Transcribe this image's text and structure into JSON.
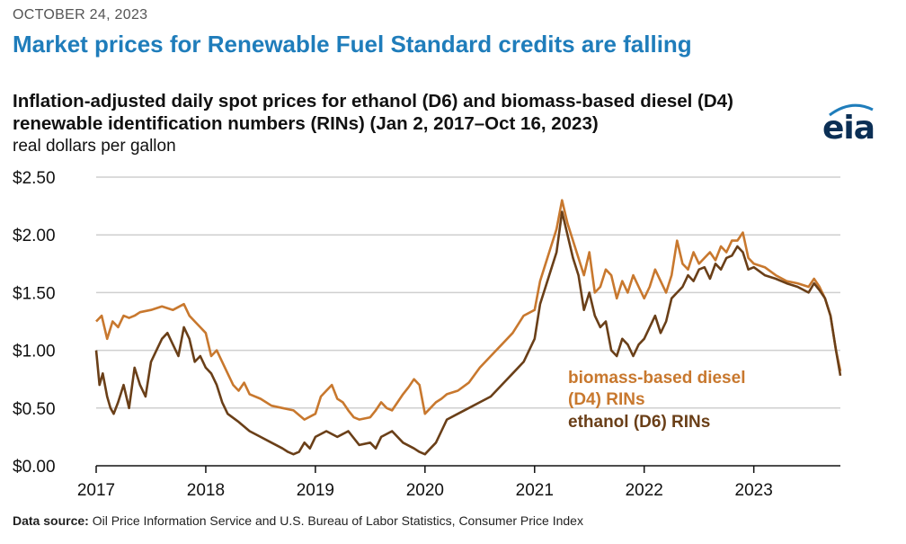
{
  "header": {
    "date": "OCTOBER 24, 2023",
    "headline": "Market prices for Renewable Fuel Standard credits are falling"
  },
  "logo": {
    "text": "eia"
  },
  "footer": {
    "source_label": "Data source:",
    "source_text": "Oil Price Information Service and U.S. Bureau of Labor Statistics, Consumer Price Index"
  },
  "chart_data": {
    "type": "line",
    "title": "Inflation-adjusted daily spot prices for ethanol (D6) and biomass-based diesel (D4) renewable identification numbers (RINs) (Jan 2, 2017–Oct 16, 2023)",
    "ylabel": "real dollars per gallon",
    "xlabel": "",
    "ylim": [
      0,
      2.5
    ],
    "xlim": [
      2017.0,
      2023.79
    ],
    "y_ticks": [
      0,
      0.5,
      1.0,
      1.5,
      2.0,
      2.5
    ],
    "y_tick_labels": [
      "$0.00",
      "$0.50",
      "$1.00",
      "$1.50",
      "$2.00",
      "$2.50"
    ],
    "x_ticks": [
      2017,
      2018,
      2019,
      2020,
      2021,
      2022,
      2023
    ],
    "x_tick_labels": [
      "2017",
      "2018",
      "2019",
      "2020",
      "2021",
      "2022",
      "2023"
    ],
    "grid": "horizontal",
    "series": [
      {
        "name": "biomass-based diesel (D4) RINs",
        "label_lines": [
          "biomass-based diesel",
          "(D4) RINs"
        ],
        "color": "#c8782e",
        "x": [
          2017.0,
          2017.05,
          2017.1,
          2017.15,
          2017.2,
          2017.25,
          2017.3,
          2017.35,
          2017.4,
          2017.5,
          2017.6,
          2017.7,
          2017.8,
          2017.85,
          2017.9,
          2017.95,
          2018.0,
          2018.05,
          2018.1,
          2018.15,
          2018.2,
          2018.25,
          2018.3,
          2018.35,
          2018.4,
          2018.5,
          2018.6,
          2018.7,
          2018.8,
          2018.9,
          2019.0,
          2019.05,
          2019.1,
          2019.15,
          2019.2,
          2019.25,
          2019.3,
          2019.35,
          2019.4,
          2019.5,
          2019.55,
          2019.6,
          2019.65,
          2019.7,
          2019.75,
          2019.8,
          2019.85,
          2019.9,
          2019.95,
          2020.0,
          2020.05,
          2020.1,
          2020.15,
          2020.2,
          2020.3,
          2020.4,
          2020.5,
          2020.6,
          2020.7,
          2020.8,
          2020.9,
          2021.0,
          2021.05,
          2021.1,
          2021.15,
          2021.2,
          2021.25,
          2021.3,
          2021.35,
          2021.4,
          2021.45,
          2021.5,
          2021.55,
          2021.6,
          2021.65,
          2021.7,
          2021.75,
          2021.8,
          2021.85,
          2021.9,
          2021.95,
          2022.0,
          2022.05,
          2022.1,
          2022.15,
          2022.2,
          2022.25,
          2022.3,
          2022.35,
          2022.4,
          2022.45,
          2022.5,
          2022.55,
          2022.6,
          2022.65,
          2022.7,
          2022.75,
          2022.8,
          2022.85,
          2022.9,
          2022.95,
          2023.0,
          2023.1,
          2023.2,
          2023.3,
          2023.4,
          2023.5,
          2023.55,
          2023.6,
          2023.65,
          2023.7,
          2023.75,
          2023.79
        ],
        "y": [
          1.25,
          1.3,
          1.1,
          1.25,
          1.2,
          1.3,
          1.28,
          1.3,
          1.33,
          1.35,
          1.38,
          1.35,
          1.4,
          1.3,
          1.25,
          1.2,
          1.15,
          0.95,
          1.0,
          0.9,
          0.8,
          0.7,
          0.65,
          0.72,
          0.62,
          0.58,
          0.52,
          0.5,
          0.48,
          0.4,
          0.45,
          0.6,
          0.65,
          0.7,
          0.58,
          0.55,
          0.48,
          0.42,
          0.4,
          0.42,
          0.48,
          0.55,
          0.5,
          0.48,
          0.55,
          0.62,
          0.68,
          0.75,
          0.7,
          0.45,
          0.5,
          0.55,
          0.58,
          0.62,
          0.65,
          0.72,
          0.85,
          0.95,
          1.05,
          1.15,
          1.3,
          1.35,
          1.6,
          1.75,
          1.9,
          2.05,
          2.3,
          2.1,
          1.95,
          1.8,
          1.65,
          1.85,
          1.5,
          1.55,
          1.7,
          1.65,
          1.45,
          1.6,
          1.5,
          1.65,
          1.55,
          1.45,
          1.55,
          1.7,
          1.6,
          1.5,
          1.65,
          1.95,
          1.75,
          1.7,
          1.85,
          1.75,
          1.8,
          1.85,
          1.78,
          1.9,
          1.85,
          1.95,
          1.95,
          2.02,
          1.8,
          1.75,
          1.72,
          1.65,
          1.6,
          1.58,
          1.55,
          1.62,
          1.55,
          1.45,
          1.3,
          1.0,
          0.82
        ]
      },
      {
        "name": "ethanol (D6) RINs",
        "label_lines": [
          "ethanol (D6) RINs"
        ],
        "color": "#6a3f18",
        "x": [
          2017.0,
          2017.03,
          2017.06,
          2017.1,
          2017.13,
          2017.16,
          2017.2,
          2017.25,
          2017.3,
          2017.35,
          2017.4,
          2017.45,
          2017.5,
          2017.55,
          2017.6,
          2017.65,
          2017.7,
          2017.75,
          2017.8,
          2017.85,
          2017.9,
          2017.95,
          2018.0,
          2018.05,
          2018.1,
          2018.15,
          2018.2,
          2018.3,
          2018.4,
          2018.5,
          2018.6,
          2018.7,
          2018.75,
          2018.8,
          2018.85,
          2018.9,
          2018.95,
          2019.0,
          2019.1,
          2019.2,
          2019.3,
          2019.4,
          2019.5,
          2019.55,
          2019.6,
          2019.7,
          2019.8,
          2019.9,
          2019.95,
          2020.0,
          2020.05,
          2020.1,
          2020.15,
          2020.2,
          2020.3,
          2020.4,
          2020.5,
          2020.6,
          2020.7,
          2020.8,
          2020.9,
          2021.0,
          2021.05,
          2021.1,
          2021.15,
          2021.2,
          2021.25,
          2021.3,
          2021.35,
          2021.4,
          2021.45,
          2021.5,
          2021.55,
          2021.6,
          2021.65,
          2021.7,
          2021.75,
          2021.8,
          2021.85,
          2021.9,
          2021.95,
          2022.0,
          2022.05,
          2022.1,
          2022.15,
          2022.2,
          2022.25,
          2022.3,
          2022.35,
          2022.4,
          2022.45,
          2022.5,
          2022.55,
          2022.6,
          2022.65,
          2022.7,
          2022.75,
          2022.8,
          2022.85,
          2022.9,
          2022.95,
          2023.0,
          2023.1,
          2023.2,
          2023.3,
          2023.4,
          2023.5,
          2023.55,
          2023.6,
          2023.65,
          2023.7,
          2023.75,
          2023.79
        ],
        "y": [
          1.0,
          0.7,
          0.8,
          0.6,
          0.5,
          0.45,
          0.55,
          0.7,
          0.5,
          0.85,
          0.7,
          0.6,
          0.9,
          1.0,
          1.1,
          1.15,
          1.05,
          0.95,
          1.2,
          1.1,
          0.9,
          0.95,
          0.85,
          0.8,
          0.7,
          0.55,
          0.45,
          0.38,
          0.3,
          0.25,
          0.2,
          0.15,
          0.12,
          0.1,
          0.12,
          0.2,
          0.15,
          0.25,
          0.3,
          0.25,
          0.3,
          0.18,
          0.2,
          0.15,
          0.25,
          0.3,
          0.2,
          0.15,
          0.12,
          0.1,
          0.15,
          0.2,
          0.3,
          0.4,
          0.45,
          0.5,
          0.55,
          0.6,
          0.7,
          0.8,
          0.9,
          1.1,
          1.4,
          1.55,
          1.7,
          1.85,
          2.2,
          2.0,
          1.8,
          1.65,
          1.35,
          1.5,
          1.3,
          1.2,
          1.25,
          1.0,
          0.95,
          1.1,
          1.05,
          0.95,
          1.05,
          1.1,
          1.2,
          1.3,
          1.15,
          1.25,
          1.45,
          1.5,
          1.55,
          1.65,
          1.6,
          1.7,
          1.72,
          1.62,
          1.75,
          1.7,
          1.8,
          1.82,
          1.9,
          1.85,
          1.7,
          1.72,
          1.65,
          1.62,
          1.58,
          1.55,
          1.5,
          1.58,
          1.52,
          1.45,
          1.3,
          1.0,
          0.78
        ]
      }
    ]
  }
}
